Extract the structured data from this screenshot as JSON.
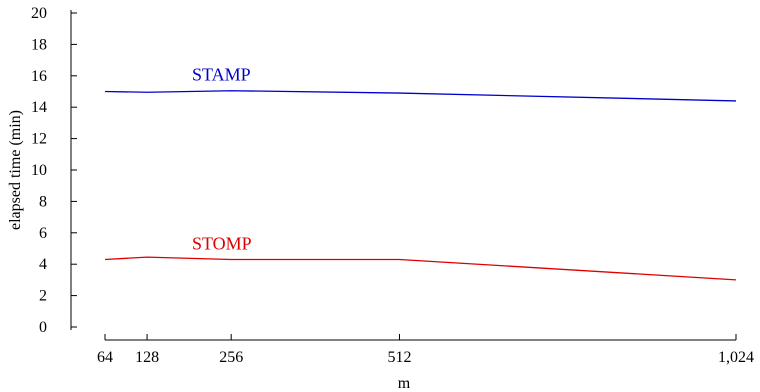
{
  "chart_data": {
    "type": "line",
    "title": "",
    "xlabel": "m",
    "ylabel": "elapsed time (min)",
    "x": [
      64,
      128,
      256,
      512,
      1024
    ],
    "x_tick_labels": [
      "64",
      "128",
      "256",
      "512",
      "1,024"
    ],
    "xlim": [
      64,
      1024
    ],
    "ylim": [
      0,
      20
    ],
    "y_ticks": [
      0,
      2,
      4,
      6,
      8,
      10,
      12,
      14,
      16,
      18,
      20
    ],
    "grid": false,
    "legend": "inline labels",
    "series": [
      {
        "name": "STAMP",
        "color": "#0000cc",
        "values": [
          15.0,
          14.95,
          15.05,
          14.9,
          14.4
        ]
      },
      {
        "name": "STOMP",
        "color": "#dd0000",
        "values": [
          4.3,
          4.45,
          4.3,
          4.3,
          3.0
        ]
      }
    ]
  }
}
